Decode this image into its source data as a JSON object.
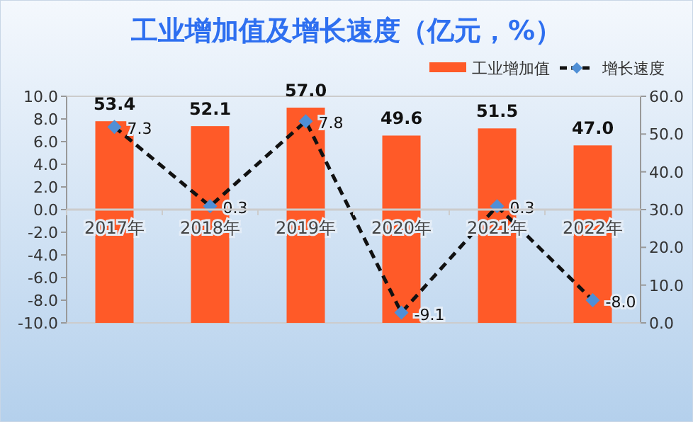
{
  "chart_data": {
    "type": "bar",
    "title": "工业增加值及增长速度（亿元，%）",
    "categories": [
      "2017年",
      "2018年",
      "2019年",
      "2020年",
      "2021年",
      "2022年"
    ],
    "series": [
      {
        "name": "工业增加值",
        "axis": "y2",
        "color": "#ff5a28",
        "values": [
          53.4,
          52.1,
          57.0,
          49.6,
          51.5,
          47.0
        ],
        "value_labels": [
          "53.4",
          "52.1",
          "57.0",
          "49.6",
          "51.5",
          "47.0"
        ]
      },
      {
        "name": "增长速度",
        "type": "line",
        "color": "#111111",
        "marker": "diamond",
        "line_style": "dashed",
        "values": [
          7.3,
          0.3,
          7.8,
          -9.1,
          0.3,
          -8.0
        ],
        "value_labels": [
          "7.3",
          "0.3",
          "7.8",
          "-9.1",
          "0.3",
          "-8.0"
        ]
      }
    ],
    "ylim": [
      -10,
      10
    ],
    "yticks": [
      {
        "value": -10,
        "label": "-10.0"
      },
      {
        "value": -8,
        "label": "-8.0"
      },
      {
        "value": -6,
        "label": "-6.0"
      },
      {
        "value": -4,
        "label": "-4.0"
      },
      {
        "value": -2,
        "label": "-2.0"
      },
      {
        "value": 0,
        "label": "0.0"
      },
      {
        "value": 2,
        "label": "2.0"
      },
      {
        "value": 4,
        "label": "4.0"
      },
      {
        "value": 6,
        "label": "6.0"
      },
      {
        "value": 8,
        "label": "8.0"
      },
      {
        "value": 10,
        "label": "10.0"
      }
    ],
    "y2lim": [
      0,
      60
    ],
    "y2ticks": [
      {
        "value": 0,
        "label": "0.0"
      },
      {
        "value": 10,
        "label": "10.0"
      },
      {
        "value": 20,
        "label": "20.0"
      },
      {
        "value": 30,
        "label": "30.0"
      },
      {
        "value": 40,
        "label": "40.0"
      },
      {
        "value": 50,
        "label": "50.0"
      },
      {
        "value": 60,
        "label": "60.0"
      }
    ],
    "legend": "top right",
    "grid": false
  }
}
